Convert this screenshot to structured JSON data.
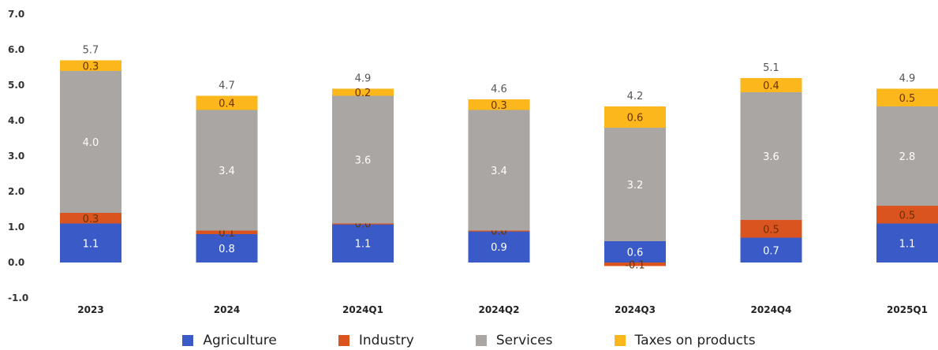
{
  "chart_data": {
    "type": "bar",
    "stacked": true,
    "categories": [
      "2023",
      "2024",
      "2024Q1",
      "2024Q2",
      "2024Q3",
      "2024Q4",
      "2025Q1"
    ],
    "series": [
      {
        "name": "Agriculture",
        "color": "#3a5bc7",
        "values": [
          1.1,
          0.8,
          1.1,
          0.9,
          0.6,
          0.7,
          1.1
        ],
        "labels": [
          "1.1",
          "0.8",
          "1.1",
          "0.9",
          "0.6",
          "0.7",
          "1.1"
        ]
      },
      {
        "name": "Industry",
        "color": "#d9541e",
        "values": [
          0.3,
          0.1,
          0.0,
          0.0,
          -0.1,
          0.5,
          0.5
        ],
        "labels": [
          "0.3",
          "0.1",
          "0.0",
          "0.0",
          "-0.1",
          "0.5",
          "0.5"
        ]
      },
      {
        "name": "Services",
        "color": "#a9a6a3",
        "values": [
          4.0,
          3.4,
          3.6,
          3.4,
          3.2,
          3.6,
          2.8
        ],
        "labels": [
          "4.0",
          "3.4",
          "3.6",
          "3.4",
          "3.2",
          "3.6",
          "2.8"
        ]
      },
      {
        "name": "Taxes on products",
        "color": "#fbb71b",
        "values": [
          0.3,
          0.4,
          0.2,
          0.3,
          0.6,
          0.4,
          0.5
        ],
        "labels": [
          "0.3",
          "0.4",
          "0.2",
          "0.3",
          "0.6",
          "0.4",
          "0.5"
        ]
      }
    ],
    "totals": [
      "5.7",
      "4.7",
      "4.9",
      "4.6",
      "4.2",
      "5.1",
      "4.9"
    ],
    "ylim": [
      -1.0,
      7.0
    ],
    "yticks": [
      "7.0",
      "6.0",
      "5.0",
      "4.0",
      "3.0",
      "2.0",
      "1.0",
      "0.0",
      "-1.0"
    ],
    "grid": false,
    "legend_position": "bottom"
  }
}
